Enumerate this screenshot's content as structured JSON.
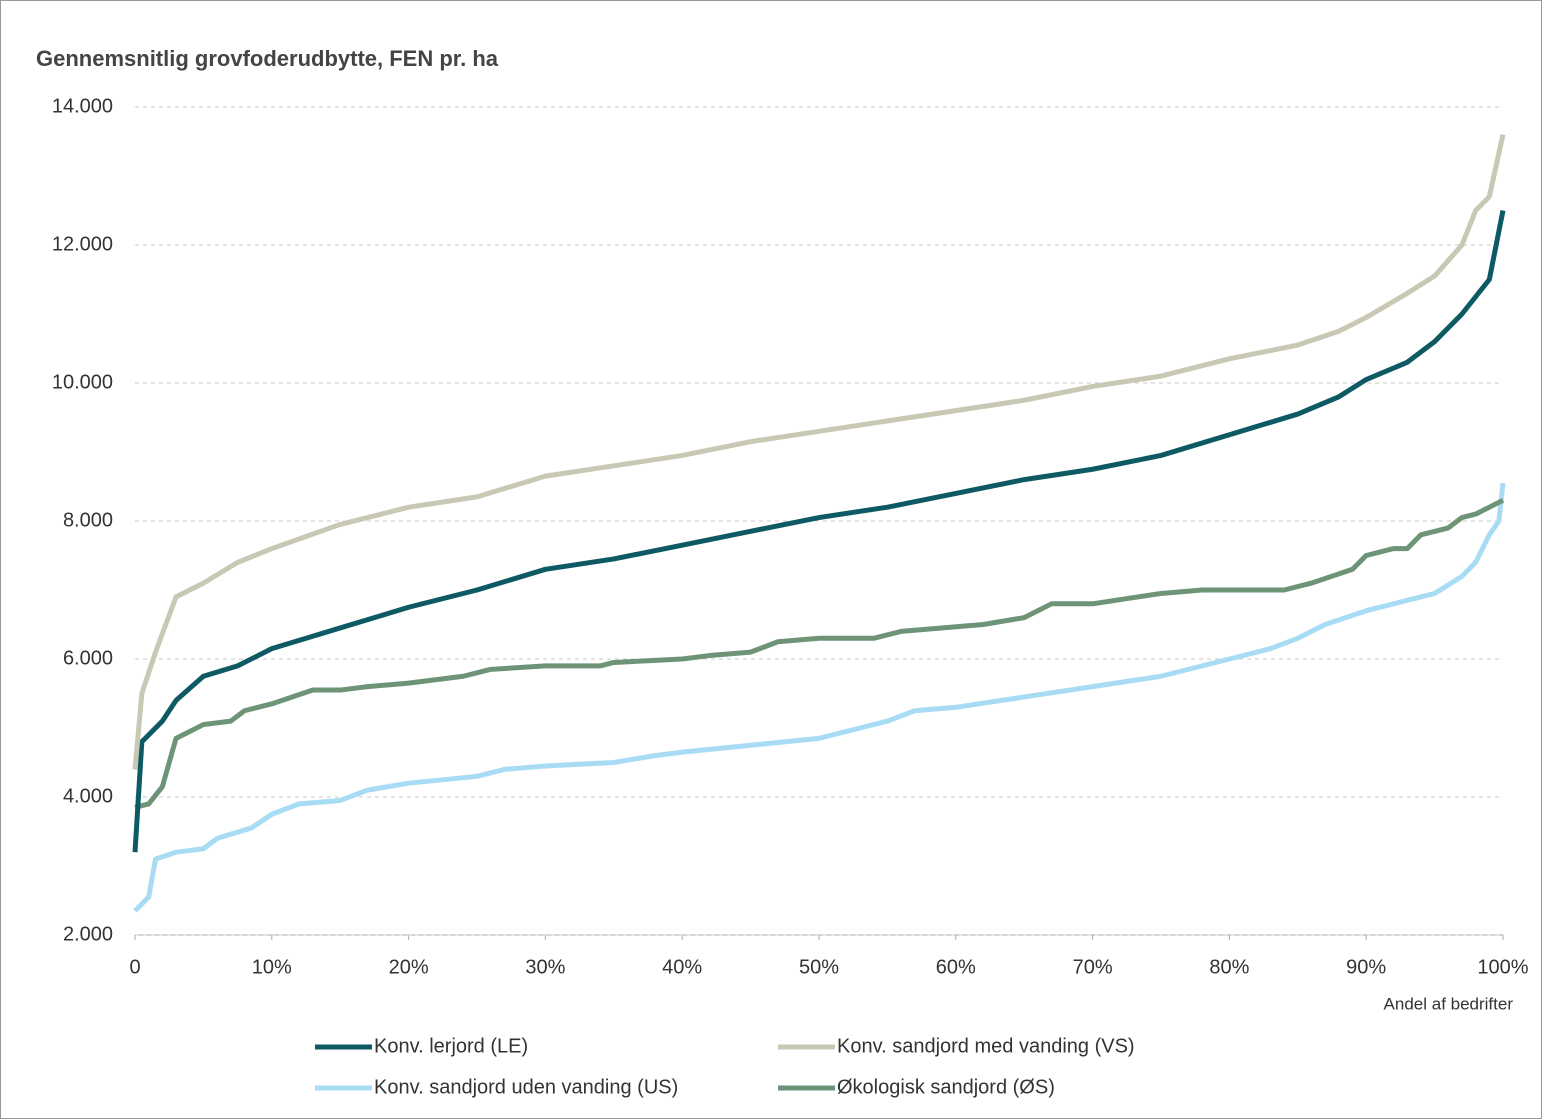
{
  "chart_data": {
    "type": "line",
    "title": "Gennemsnitlig grovfoderudbytte, FEN pr. ha",
    "x_label": "Andel af bedrifter",
    "xlim": [
      0,
      100
    ],
    "xticks": [
      0,
      {
        "value": 10,
        "label": "10%"
      },
      {
        "value": 20,
        "label": "20%"
      },
      {
        "value": 30,
        "label": "30%"
      },
      {
        "value": 40,
        "label": "40%"
      },
      {
        "value": 50,
        "label": "50%"
      },
      {
        "value": 60,
        "label": "60%"
      },
      {
        "value": 70,
        "label": "70%"
      },
      {
        "value": 80,
        "label": "80%"
      },
      {
        "value": 90,
        "label": "90%"
      },
      {
        "value": 100,
        "label": "100%"
      }
    ],
    "ylim": [
      2000,
      14000
    ],
    "yticks": [
      {
        "value": 2000,
        "label": "2.000"
      },
      {
        "value": 4000,
        "label": "4.000"
      },
      {
        "value": 6000,
        "label": "6.000"
      },
      {
        "value": 8000,
        "label": "8.000"
      },
      {
        "value": 10000,
        "label": "10.000"
      },
      {
        "value": 12000,
        "label": "12.000"
      },
      {
        "value": 14000,
        "label": "14.000"
      }
    ],
    "grid": true,
    "legend": "bottom",
    "series": [
      {
        "name": "Konv. lerjord (LE)",
        "color": "#0e5a64",
        "x": [
          0,
          0.5,
          2,
          3,
          5,
          7.5,
          10,
          15,
          20,
          25,
          30,
          35,
          40,
          45,
          50,
          55,
          60,
          65,
          70,
          75,
          80,
          85,
          88,
          90,
          93,
          95,
          97,
          99,
          99.5,
          100
        ],
        "values": [
          3200,
          4800,
          5100,
          5400,
          5750,
          5900,
          6150,
          6450,
          6750,
          7000,
          7300,
          7450,
          7650,
          7850,
          8050,
          8200,
          8400,
          8600,
          8750,
          8950,
          9250,
          9550,
          9800,
          10050,
          10300,
          10600,
          11000,
          11500,
          12000,
          12500
        ]
      },
      {
        "name": "Konv. sandjord med vanding (VS)",
        "color": "#c9c8b4",
        "x": [
          0,
          0.5,
          1.5,
          3,
          5,
          7.5,
          10,
          15,
          20,
          25,
          30,
          35,
          40,
          45,
          50,
          55,
          60,
          65,
          70,
          75,
          80,
          85,
          88,
          90,
          93,
          95,
          97,
          98,
          99,
          100
        ],
        "values": [
          4400,
          5500,
          6100,
          6900,
          7100,
          7400,
          7600,
          7950,
          8200,
          8350,
          8650,
          8800,
          8950,
          9150,
          9300,
          9450,
          9600,
          9750,
          9950,
          10100,
          10350,
          10550,
          10750,
          10950,
          11300,
          11550,
          12000,
          12500,
          12700,
          13600
        ]
      },
      {
        "name": "Konv. sandjord uden vanding (US)",
        "color": "#a8dcf4",
        "x": [
          0,
          1,
          1.5,
          3,
          5,
          6,
          8.5,
          10,
          12,
          15,
          17,
          20,
          25,
          27,
          30,
          35,
          38,
          40,
          45,
          50,
          53,
          55,
          57,
          60,
          65,
          70,
          75,
          80,
          83,
          85,
          87,
          90,
          93,
          95,
          97,
          98,
          99,
          99.7,
          100
        ],
        "values": [
          2350,
          2550,
          3100,
          3200,
          3250,
          3400,
          3550,
          3750,
          3900,
          3950,
          4100,
          4200,
          4300,
          4400,
          4450,
          4500,
          4600,
          4650,
          4750,
          4850,
          5000,
          5100,
          5250,
          5300,
          5450,
          5600,
          5750,
          6000,
          6150,
          6300,
          6500,
          6700,
          6850,
          6950,
          7200,
          7400,
          7800,
          8000,
          8550
        ]
      },
      {
        "name": "Økologisk sandjord (ØS)",
        "color": "#6e9478",
        "x": [
          0,
          1,
          2,
          3,
          5,
          7,
          8,
          10,
          13,
          15,
          17,
          20,
          24,
          26,
          30,
          34,
          35,
          40,
          42,
          45,
          47,
          50,
          54,
          56,
          62,
          65,
          67,
          70,
          75,
          78,
          80,
          84,
          86,
          89,
          90,
          92,
          93,
          94,
          96,
          97,
          98,
          100
        ],
        "values": [
          3850,
          3900,
          4150,
          4850,
          5050,
          5100,
          5250,
          5350,
          5550,
          5550,
          5600,
          5650,
          5750,
          5850,
          5900,
          5900,
          5950,
          6000,
          6050,
          6100,
          6250,
          6300,
          6300,
          6400,
          6500,
          6600,
          6800,
          6800,
          6950,
          7000,
          7000,
          7000,
          7100,
          7300,
          7500,
          7600,
          7600,
          7800,
          7900,
          8050,
          8100,
          8300
        ]
      }
    ]
  }
}
